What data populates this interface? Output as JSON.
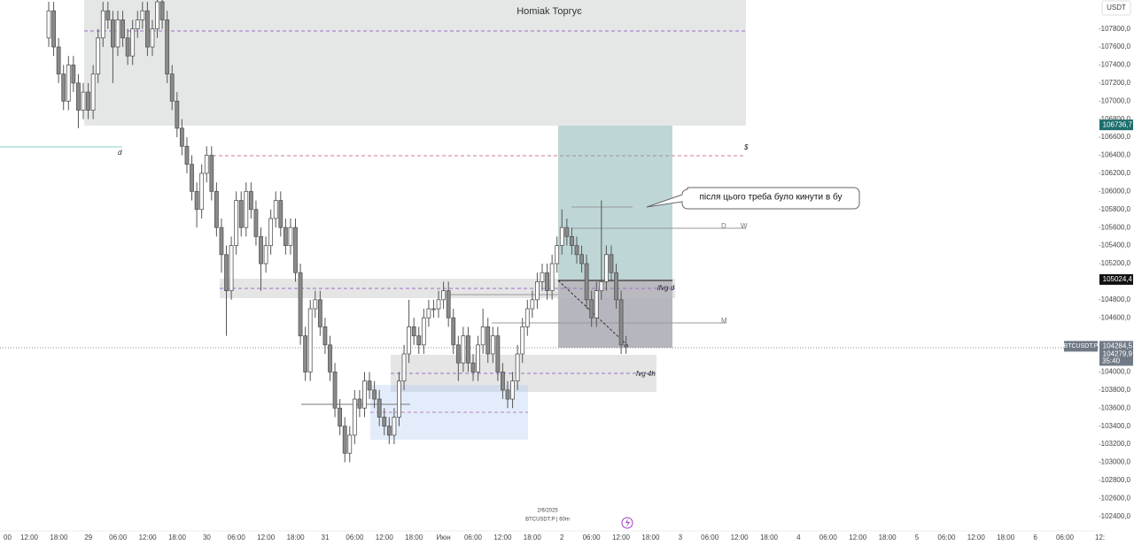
{
  "chart_data": {
    "type": "candlestick",
    "title": "Homiak Торгує",
    "currency": "USDT",
    "symbol": "BTCUSDT.P",
    "ylim": [
      102260,
      108120
    ],
    "yticks": [
      {
        "value": 107800,
        "label": "107800,0"
      },
      {
        "value": 107600,
        "label": "107600,0"
      },
      {
        "value": 107400,
        "label": "107400,0"
      },
      {
        "value": 107200,
        "label": "107200,0"
      },
      {
        "value": 107000,
        "label": "107000,0"
      },
      {
        "value": 106800,
        "label": "106800,0"
      },
      {
        "value": 106600,
        "label": "106600,0"
      },
      {
        "value": 106400,
        "label": "106400,0"
      },
      {
        "value": 106200,
        "label": "106200,0"
      },
      {
        "value": 106000,
        "label": "106000,0"
      },
      {
        "value": 105800,
        "label": "105800,0"
      },
      {
        "value": 105600,
        "label": "105600,0"
      },
      {
        "value": 105400,
        "label": "105400,0"
      },
      {
        "value": 105200,
        "label": "105200,0"
      },
      {
        "value": 104800,
        "label": "104800,0"
      },
      {
        "value": 104600,
        "label": "104600,0"
      },
      {
        "value": 104000,
        "label": "104000,0"
      },
      {
        "value": 103800,
        "label": "103800,0"
      },
      {
        "value": 103600,
        "label": "103600,0"
      },
      {
        "value": 103400,
        "label": "103400,0"
      },
      {
        "value": 103200,
        "label": "103200,0"
      },
      {
        "value": 103000,
        "label": "103000,0"
      },
      {
        "value": 102800,
        "label": "102800,0"
      },
      {
        "value": 102600,
        "label": "102600,0"
      },
      {
        "value": 102400,
        "label": "102400,0"
      }
    ],
    "time_labels": [
      "00",
      "12:00",
      "18:00",
      "29",
      "06:00",
      "12:00",
      "18:00",
      "30",
      "06:00",
      "12:00",
      "18:00",
      "31",
      "06:00",
      "12:00",
      "18:00",
      "Июн",
      "06:00",
      "12:00",
      "18:00",
      "2",
      "06:00",
      "12:00",
      "18:00",
      "3",
      "06:00",
      "12:00",
      "18:00",
      "4",
      "06:00",
      "12:00",
      "18:00",
      "5",
      "06:00",
      "12:00",
      "18:00",
      "6",
      "06:00",
      "12:"
    ],
    "price_tags": [
      {
        "value": 106736.7,
        "label": "106736,7",
        "color": "#1e6e6e"
      },
      {
        "value": 105024.4,
        "label": "105024,4",
        "color": "#111111"
      },
      {
        "value": 104284.5,
        "label": "104284,5",
        "color": "#707a86"
      }
    ],
    "countdown_price": "104279,9",
    "countdown": "35:40",
    "candles": [
      [
        107700,
        108100,
        107600,
        108000
      ],
      [
        108000,
        108100,
        107500,
        107600
      ],
      [
        107600,
        107700,
        107200,
        107300
      ],
      [
        107300,
        107400,
        106900,
        107000
      ],
      [
        107000,
        107500,
        106900,
        107400
      ],
      [
        107400,
        107500,
        107100,
        107200
      ],
      [
        107200,
        107300,
        106700,
        106900
      ],
      [
        106900,
        107200,
        106800,
        107100
      ],
      [
        107100,
        107200,
        106800,
        106900
      ],
      [
        106900,
        107400,
        106800,
        107300
      ],
      [
        107300,
        107800,
        107200,
        107700
      ],
      [
        107700,
        108100,
        107600,
        108000
      ],
      [
        108000,
        108100,
        107800,
        107900
      ],
      [
        107900,
        108000,
        107200,
        107600
      ],
      [
        107600,
        108000,
        107500,
        107900
      ],
      [
        107900,
        108000,
        107600,
        107700
      ],
      [
        107700,
        107800,
        107400,
        107500
      ],
      [
        107500,
        107900,
        107400,
        107800
      ],
      [
        107800,
        108000,
        107700,
        107900
      ],
      [
        107900,
        108100,
        107800,
        108000
      ],
      [
        108000,
        108100,
        107500,
        107600
      ],
      [
        107600,
        107900,
        107500,
        107800
      ],
      [
        107800,
        108200,
        107700,
        108100
      ],
      [
        108100,
        108200,
        107800,
        107900
      ],
      [
        107900,
        108000,
        107200,
        107300
      ],
      [
        107300,
        107400,
        106900,
        107000
      ],
      [
        107000,
        107100,
        106600,
        106700
      ],
      [
        106700,
        106800,
        106400,
        106500
      ],
      [
        106500,
        106600,
        106200,
        106300
      ],
      [
        106300,
        106400,
        105900,
        106000
      ],
      [
        106000,
        106100,
        105600,
        105800
      ],
      [
        105800,
        106300,
        105700,
        106200
      ],
      [
        106200,
        106500,
        106100,
        106400
      ],
      [
        106400,
        106500,
        105900,
        106000
      ],
      [
        106000,
        106100,
        105500,
        105600
      ],
      [
        105600,
        105700,
        105100,
        105300
      ],
      [
        105300,
        105400,
        104400,
        104900
      ],
      [
        104900,
        105500,
        104800,
        105400
      ],
      [
        105400,
        106000,
        105300,
        105900
      ],
      [
        105900,
        106000,
        105500,
        105600
      ],
      [
        105600,
        106100,
        105500,
        106000
      ],
      [
        106000,
        106100,
        105700,
        105800
      ],
      [
        105800,
        105900,
        105400,
        105500
      ],
      [
        105500,
        105600,
        104900,
        105200
      ],
      [
        105200,
        105500,
        105100,
        105400
      ],
      [
        105400,
        105800,
        105300,
        105700
      ],
      [
        105700,
        106000,
        105600,
        105900
      ],
      [
        105900,
        106000,
        105500,
        105600
      ],
      [
        105600,
        105700,
        105300,
        105400
      ],
      [
        105400,
        105700,
        105300,
        105600
      ],
      [
        105600,
        105700,
        105000,
        105100
      ],
      [
        105100,
        105200,
        104300,
        104400
      ],
      [
        104400,
        104500,
        103900,
        104000
      ],
      [
        104000,
        104800,
        103900,
        104700
      ],
      [
        104700,
        104900,
        104600,
        104800
      ],
      [
        104800,
        104900,
        104400,
        104500
      ],
      [
        104500,
        104600,
        104200,
        104300
      ],
      [
        104300,
        104400,
        103900,
        104000
      ],
      [
        104000,
        104100,
        103500,
        103600
      ],
      [
        103600,
        103700,
        103300,
        103400
      ],
      [
        103400,
        103500,
        103000,
        103100
      ],
      [
        103100,
        103400,
        103000,
        103300
      ],
      [
        103300,
        103800,
        103200,
        103700
      ],
      [
        103700,
        103800,
        103500,
        103600
      ],
      [
        103600,
        104000,
        103500,
        103900
      ],
      [
        103900,
        104000,
        103700,
        103800
      ],
      [
        103800,
        103900,
        103600,
        103700
      ],
      [
        103700,
        103800,
        103400,
        103500
      ],
      [
        103500,
        103600,
        103300,
        103400
      ],
      [
        103400,
        103500,
        103200,
        103300
      ],
      [
        103300,
        103600,
        103200,
        103500
      ],
      [
        103500,
        104000,
        103400,
        103900
      ],
      [
        103900,
        104300,
        103800,
        104200
      ],
      [
        104200,
        104800,
        104100,
        104500
      ],
      [
        104500,
        104600,
        104300,
        104400
      ],
      [
        104400,
        104500,
        104200,
        104300
      ],
      [
        104300,
        104700,
        104200,
        104600
      ],
      [
        104600,
        104800,
        104500,
        104700
      ],
      [
        104700,
        104800,
        104600,
        104700
      ],
      [
        104700,
        104900,
        104600,
        104800
      ],
      [
        104800,
        105000,
        104700,
        104900
      ],
      [
        104900,
        105000,
        104500,
        104600
      ],
      [
        104600,
        104700,
        104200,
        104300
      ],
      [
        104300,
        104400,
        103900,
        104100
      ],
      [
        104100,
        104500,
        104000,
        104400
      ],
      [
        104400,
        104500,
        104000,
        104100
      ],
      [
        104100,
        104200,
        103900,
        104000
      ],
      [
        104000,
        104400,
        103900,
        104300
      ],
      [
        104300,
        104700,
        104200,
        104500
      ],
      [
        104500,
        104600,
        104100,
        104200
      ],
      [
        104200,
        104500,
        104100,
        104400
      ],
      [
        104400,
        104500,
        103900,
        104000
      ],
      [
        104000,
        104100,
        103700,
        103800
      ],
      [
        103800,
        103900,
        103600,
        103700
      ],
      [
        103700,
        104000,
        103600,
        103900
      ],
      [
        103900,
        104300,
        103800,
        104200
      ],
      [
        104200,
        104600,
        104100,
        104500
      ],
      [
        104500,
        104800,
        104400,
        104700
      ],
      [
        104700,
        104900,
        104600,
        104800
      ],
      [
        104800,
        105100,
        104700,
        105000
      ],
      [
        105000,
        105200,
        104900,
        105100
      ],
      [
        105100,
        105200,
        104800,
        104900
      ],
      [
        104900,
        105300,
        104800,
        105200
      ],
      [
        105200,
        105500,
        105100,
        105400
      ],
      [
        105400,
        105800,
        105300,
        105600
      ],
      [
        105600,
        105700,
        105400,
        105500
      ],
      [
        105500,
        105600,
        105300,
        105400
      ],
      [
        105400,
        105500,
        105200,
        105300
      ],
      [
        105300,
        105400,
        105100,
        105200
      ],
      [
        105200,
        105300,
        104700,
        104800
      ],
      [
        104800,
        104900,
        104500,
        104600
      ],
      [
        104600,
        105000,
        104500,
        104900
      ],
      [
        104900,
        105900,
        104800,
        105000
      ],
      [
        105000,
        105400,
        104900,
        105300
      ],
      [
        105300,
        105400,
        105000,
        105100
      ],
      [
        105100,
        105200,
        104700,
        104800
      ],
      [
        104800,
        104900,
        104200,
        104300
      ],
      [
        104300,
        104400,
        104200,
        104280
      ]
    ]
  },
  "annotations": {
    "callout": "після цього треба було кинути в бу",
    "ifvg": "ifvg d",
    "fvg": "fvg 4h",
    "d": "d",
    "dollar": "$",
    "D": "D",
    "W": "W",
    "M": "M"
  },
  "footer": {
    "date": "2/6/2025",
    "symbol_interval": "BTCUSDT.P | 60m"
  }
}
